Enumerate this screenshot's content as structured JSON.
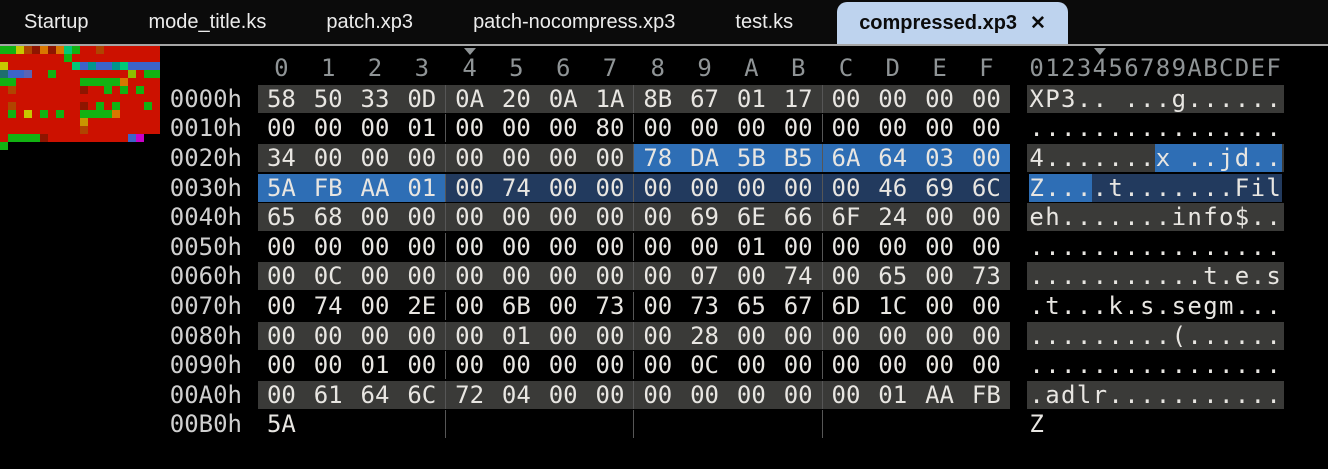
{
  "tab_bar": {
    "tabs": [
      "Startup",
      "mode_title.ks",
      "patch.xp3",
      "patch-nocompress.xp3",
      "test.ks"
    ],
    "active_tab": "compressed.xp3",
    "close_glyph": "✕"
  },
  "hex_view": {
    "column_headers": [
      "0",
      "1",
      "2",
      "3",
      "4",
      "5",
      "6",
      "7",
      "8",
      "9",
      "A",
      "B",
      "C",
      "D",
      "E",
      "F"
    ],
    "ascii_header": "0123456789ABCDEF",
    "caret_column": 4,
    "rows": [
      {
        "addr": "0000h",
        "alt": true,
        "bytes": [
          "58",
          "50",
          "33",
          "0D",
          "0A",
          "20",
          "0A",
          "1A",
          "8B",
          "67",
          "01",
          "17",
          "00",
          "00",
          "00",
          "00"
        ],
        "ascii": "XP3.. ...g......"
      },
      {
        "addr": "0010h",
        "alt": false,
        "bytes": [
          "00",
          "00",
          "00",
          "01",
          "00",
          "00",
          "00",
          "80",
          "00",
          "00",
          "00",
          "00",
          "00",
          "00",
          "00",
          "00"
        ],
        "ascii": "................"
      },
      {
        "addr": "0020h",
        "alt": true,
        "bytes": [
          "34",
          "00",
          "00",
          "00",
          "00",
          "00",
          "00",
          "00",
          "78",
          "DA",
          "5B",
          "B5",
          "6A",
          "64",
          "03",
          "00"
        ],
        "ascii": "4.......x ..jd..",
        "hl": [
          0,
          0,
          0,
          0,
          0,
          0,
          0,
          0,
          1,
          1,
          1,
          1,
          1,
          1,
          1,
          1
        ]
      },
      {
        "addr": "0030h",
        "alt": false,
        "bytes": [
          "5A",
          "FB",
          "AA",
          "01",
          "00",
          "74",
          "00",
          "00",
          "00",
          "00",
          "00",
          "00",
          "00",
          "46",
          "69",
          "6C"
        ],
        "ascii": "Z....t.......Fil",
        "hl": [
          1,
          1,
          1,
          1,
          2,
          2,
          2,
          2,
          2,
          2,
          2,
          2,
          2,
          2,
          2,
          2
        ]
      },
      {
        "addr": "0040h",
        "alt": true,
        "bytes": [
          "65",
          "68",
          "00",
          "00",
          "00",
          "00",
          "00",
          "00",
          "00",
          "69",
          "6E",
          "66",
          "6F",
          "24",
          "00",
          "00"
        ],
        "ascii": "eh.......info$.."
      },
      {
        "addr": "0050h",
        "alt": false,
        "bytes": [
          "00",
          "00",
          "00",
          "00",
          "00",
          "00",
          "00",
          "00",
          "00",
          "00",
          "01",
          "00",
          "00",
          "00",
          "00",
          "00"
        ],
        "ascii": "................"
      },
      {
        "addr": "0060h",
        "alt": true,
        "bytes": [
          "00",
          "0C",
          "00",
          "00",
          "00",
          "00",
          "00",
          "00",
          "00",
          "07",
          "00",
          "74",
          "00",
          "65",
          "00",
          "73"
        ],
        "ascii": "...........t.e.s"
      },
      {
        "addr": "0070h",
        "alt": false,
        "bytes": [
          "00",
          "74",
          "00",
          "2E",
          "00",
          "6B",
          "00",
          "73",
          "00",
          "73",
          "65",
          "67",
          "6D",
          "1C",
          "00",
          "00"
        ],
        "ascii": ".t...k.s.segm..."
      },
      {
        "addr": "0080h",
        "alt": true,
        "bytes": [
          "00",
          "00",
          "00",
          "00",
          "00",
          "01",
          "00",
          "00",
          "00",
          "28",
          "00",
          "00",
          "00",
          "00",
          "00",
          "00"
        ],
        "ascii": ".........(......"
      },
      {
        "addr": "0090h",
        "alt": false,
        "bytes": [
          "00",
          "00",
          "01",
          "00",
          "00",
          "00",
          "00",
          "00",
          "00",
          "0C",
          "00",
          "00",
          "00",
          "00",
          "00",
          "00"
        ],
        "ascii": "................"
      },
      {
        "addr": "00A0h",
        "alt": true,
        "bytes": [
          "00",
          "61",
          "64",
          "6C",
          "72",
          "04",
          "00",
          "00",
          "00",
          "00",
          "00",
          "00",
          "00",
          "01",
          "AA",
          "FB"
        ],
        "ascii": ".adlr..........."
      },
      {
        "addr": "00B0h",
        "alt": false,
        "bytes": [
          "5A"
        ],
        "ascii": "Z"
      }
    ]
  },
  "minimap": {
    "palette": {
      "R": "#cc1100",
      "r": "#8e1500",
      "N": "#b04400",
      "G": "#12b212",
      "L": "#8fbe00",
      "Y": "#c8c800",
      "D": "#c89600",
      "O": "#d97700",
      "T": "#00c878",
      "C": "#00968c",
      "t": "#1e6e6e",
      "B": "#3c64c8",
      "P": "#5a64b4",
      "M": "#c800c8",
      "K": "#000000"
    },
    "rows": [
      "GGYNrOrOTGRRNRRRRRRR",
      "RRRRRRRRGRRRRRRRRRRR",
      "YRRRRRRRRTBCBBCTBBBB",
      "tBBPRRGRRRRRRRRRLRGG",
      "GGRRRRRRRRGGGGGORRRR",
      "RNRRRRRRRRrRRGRGRGRR",
      "RRRRRRRRRRRRRRRRRRRR",
      "RNRRRRRRRRrRGRGRRRGR",
      "RGRYRGRGRRGGGGORRRRR",
      "RRRRRRRRRRDRRRRRRRRR",
      "RRRRRRRRRRNRRRRRRRRR",
      "RGGGGrRRRRRRRRRRBMKK",
      "GKKKKKKKKKKKKKKKKKKK"
    ]
  },
  "colors": {
    "selection": "#2e6eb5",
    "block_highlight": "#223a5e",
    "row_alt_bg": "#3a3a38",
    "active_tab_bg": "#bed3ee",
    "tabbar_bg": "#0b0b0b",
    "divider": "#a6a6a6",
    "hex_text": "#e8e6e2",
    "address_text": "#cfcfcf",
    "header_text": "#8f9496"
  }
}
